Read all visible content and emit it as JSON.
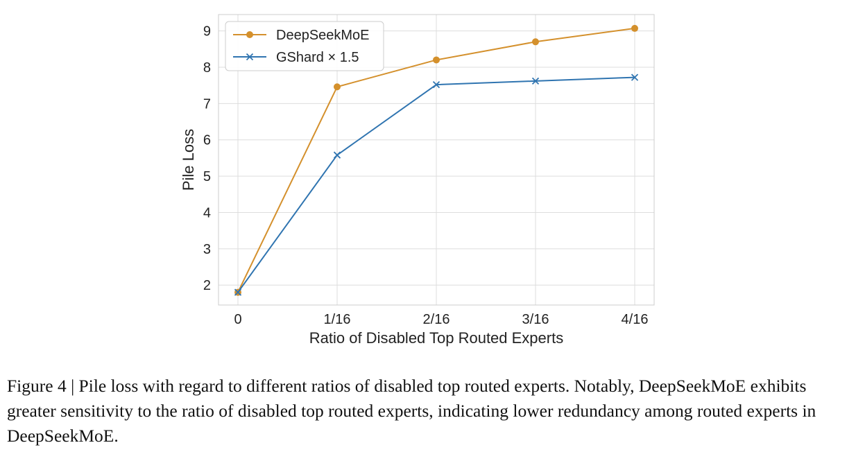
{
  "chart_data": {
    "type": "line",
    "categories": [
      "0",
      "1/16",
      "2/16",
      "3/16",
      "4/16"
    ],
    "xlabel": "Ratio of Disabled Top Routed Experts",
    "ylabel": "Pile Loss",
    "ylim": [
      1.45,
      9.45
    ],
    "yticks": [
      2,
      3,
      4,
      5,
      6,
      7,
      8,
      9
    ],
    "grid": true,
    "legend_position": "top-left",
    "series": [
      {
        "name": "DeepSeekMoE",
        "values": [
          1.8,
          7.46,
          8.2,
          8.7,
          9.07
        ],
        "color": "#d4902c",
        "marker": "circle"
      },
      {
        "name": "GShard × 1.5",
        "values": [
          1.8,
          5.58,
          7.52,
          7.62,
          7.72
        ],
        "color": "#2f74b0",
        "marker": "x"
      }
    ]
  },
  "caption": "Figure 4 | Pile loss with regard to different ratios of disabled top routed experts. Notably, DeepSeekMoE exhibits greater sensitivity to the ratio of disabled top routed experts, indicating lower redundancy among routed experts in DeepSeekMoE."
}
